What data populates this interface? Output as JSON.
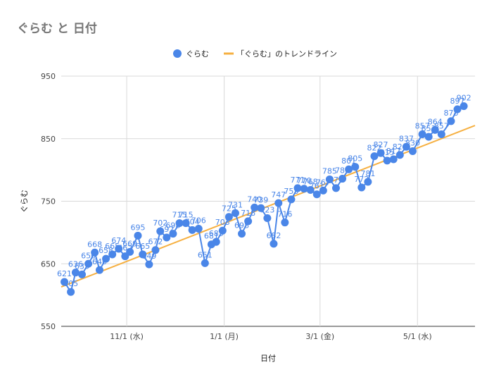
{
  "title": "ぐらむ と 日付",
  "chart_data": {
    "type": "line",
    "xlabel": "日付",
    "ylabel": "ぐらむ",
    "ylim": [
      550,
      950
    ],
    "yticks": [
      550,
      650,
      750,
      850,
      950
    ],
    "x_range": [
      "2023-09-21",
      "2024-06-06"
    ],
    "x_ticks": [
      {
        "date": "2023-11-01",
        "label": "11/1 (水)"
      },
      {
        "date": "2024-01-01",
        "label": "1/1 (月)"
      },
      {
        "date": "2024-03-01",
        "label": "3/1 (金)"
      },
      {
        "date": "2024-05-01",
        "label": "5/1 (水)"
      }
    ],
    "grid": true,
    "legend": "top-center",
    "series": [
      {
        "name": "ぐらむ",
        "color": "#4a86e8",
        "points": [
          {
            "x": "2023-09-23",
            "y": 621,
            "label": "621"
          },
          {
            "x": "2023-09-27",
            "y": 605,
            "label": "605"
          },
          {
            "x": "2023-09-30",
            "y": 636,
            "label": "636"
          },
          {
            "x": "2023-10-04",
            "y": 633,
            "label": "633"
          },
          {
            "x": "2023-10-08",
            "y": 650,
            "label": "650"
          },
          {
            "x": "2023-10-12",
            "y": 668,
            "label": "668"
          },
          {
            "x": "2023-10-15",
            "y": 640,
            "label": "640"
          },
          {
            "x": "2023-10-19",
            "y": 658,
            "label": "658"
          },
          {
            "x": "2023-10-23",
            "y": 665,
            "label": "665"
          },
          {
            "x": "2023-10-27",
            "y": 674,
            "label": "674"
          },
          {
            "x": "2023-10-31",
            "y": 662,
            "label": "662"
          },
          {
            "x": "2023-11-03",
            "y": 669,
            "label": "669"
          },
          {
            "x": "2023-11-08",
            "y": 695,
            "label": "695"
          },
          {
            "x": "2023-11-11",
            "y": 665,
            "label": "665"
          },
          {
            "x": "2023-11-15",
            "y": 649,
            "label": "649"
          },
          {
            "x": "2023-11-19",
            "y": 672,
            "label": "672"
          },
          {
            "x": "2023-11-22",
            "y": 702,
            "label": "702"
          },
          {
            "x": "2023-11-26",
            "y": 692,
            "label": "692"
          },
          {
            "x": "2023-11-30",
            "y": 698,
            "label": "698"
          },
          {
            "x": "2023-12-04",
            "y": 715,
            "label": "715"
          },
          {
            "x": "2023-12-08",
            "y": 715,
            "label": "715"
          },
          {
            "x": "2023-12-12",
            "y": 704,
            "label": "704"
          },
          {
            "x": "2023-12-16",
            "y": 706,
            "label": "706"
          },
          {
            "x": "2023-12-20",
            "y": 651,
            "label": "651"
          },
          {
            "x": "2023-12-24",
            "y": 681,
            "label": "681"
          },
          {
            "x": "2023-12-27",
            "y": 685,
            "label": "685"
          },
          {
            "x": "2023-12-31",
            "y": 703,
            "label": "703"
          },
          {
            "x": "2024-01-04",
            "y": 725,
            "label": "725"
          },
          {
            "x": "2024-01-08",
            "y": 731,
            "label": "731"
          },
          {
            "x": "2024-01-12",
            "y": 698,
            "label": "698"
          },
          {
            "x": "2024-01-16",
            "y": 718,
            "label": "718"
          },
          {
            "x": "2024-01-20",
            "y": 740,
            "label": "740"
          },
          {
            "x": "2024-01-24",
            "y": 739,
            "label": "739"
          },
          {
            "x": "2024-01-28",
            "y": 723,
            "label": "723"
          },
          {
            "x": "2024-02-01",
            "y": 682,
            "label": "682"
          },
          {
            "x": "2024-02-04",
            "y": 747,
            "label": "747"
          },
          {
            "x": "2024-02-08",
            "y": 716,
            "label": "716"
          },
          {
            "x": "2024-02-12",
            "y": 753,
            "label": "753"
          },
          {
            "x": "2024-02-16",
            "y": 771,
            "label": "771"
          },
          {
            "x": "2024-02-20",
            "y": 770,
            "label": "770"
          },
          {
            "x": "2024-02-24",
            "y": 768,
            "label": "768"
          },
          {
            "x": "2024-02-28",
            "y": 761,
            "label": "761"
          },
          {
            "x": "2024-03-03",
            "y": 767,
            "label": "767"
          },
          {
            "x": "2024-03-07",
            "y": 785,
            "label": "785"
          },
          {
            "x": "2024-03-11",
            "y": 771,
            "label": "771"
          },
          {
            "x": "2024-03-15",
            "y": 786,
            "label": "786"
          },
          {
            "x": "2024-03-19",
            "y": 801,
            "label": "801"
          },
          {
            "x": "2024-03-23",
            "y": 805,
            "label": "805"
          },
          {
            "x": "2024-03-27",
            "y": 772,
            "label": "772"
          },
          {
            "x": "2024-03-31",
            "y": 781,
            "label": "781"
          },
          {
            "x": "2024-04-04",
            "y": 822,
            "label": "822"
          },
          {
            "x": "2024-04-08",
            "y": 827,
            "label": "827"
          },
          {
            "x": "2024-04-12",
            "y": 815,
            "label": "815"
          },
          {
            "x": "2024-04-16",
            "y": 817,
            "label": "817"
          },
          {
            "x": "2024-04-20",
            "y": 824,
            "label": "824"
          },
          {
            "x": "2024-04-24",
            "y": 837,
            "label": "837"
          },
          {
            "x": "2024-04-28",
            "y": 830,
            "label": "830"
          },
          {
            "x": "2024-05-04",
            "y": 857,
            "label": "857"
          },
          {
            "x": "2024-05-08",
            "y": 853,
            "label": "853"
          },
          {
            "x": "2024-05-12",
            "y": 864,
            "label": "864"
          },
          {
            "x": "2024-05-16",
            "y": 857,
            "label": "857"
          },
          {
            "x": "2024-05-22",
            "y": 878,
            "label": "878"
          },
          {
            "x": "2024-05-26",
            "y": 897,
            "label": "897"
          },
          {
            "x": "2024-05-30",
            "y": 902,
            "label": "902"
          }
        ]
      },
      {
        "name": "「ぐらむ」のトレンドライン",
        "color": "#f6b041",
        "type": "trendline",
        "points": [
          {
            "x": "2023-09-21",
            "y": 613
          },
          {
            "x": "2024-06-06",
            "y": 871
          }
        ]
      }
    ]
  }
}
